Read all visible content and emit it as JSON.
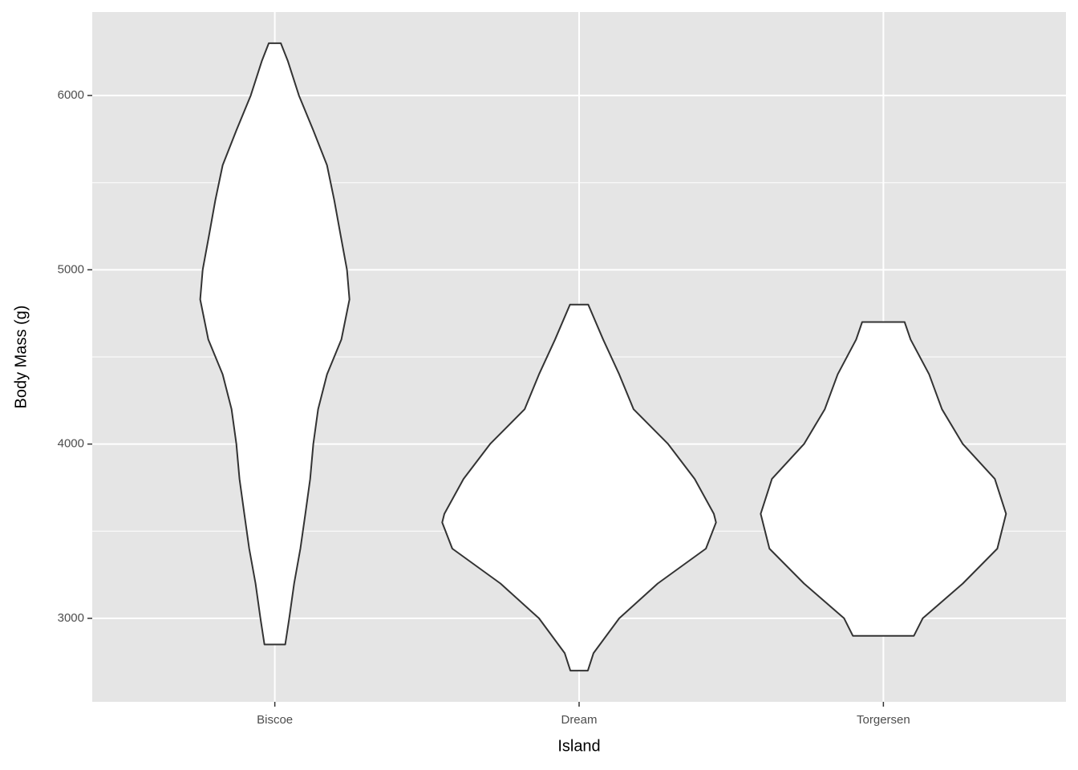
{
  "chart_data": {
    "type": "violin",
    "x_label": "Island",
    "y_label": "Body Mass (g)",
    "categories": [
      "Biscoe",
      "Dream",
      "Torgersen"
    ],
    "ylim": [
      2521,
      6479
    ],
    "yticks": [
      3000,
      4000,
      5000,
      6000
    ],
    "y_minor_ticks": [
      3500,
      4500,
      5500
    ],
    "grid": true,
    "fill": "#ffffff",
    "color": "#333333",
    "violins": [
      {
        "y": [
          6300,
          6200,
          6000,
          5800,
          5600,
          5400,
          5200,
          5000,
          4830,
          4600,
          4400,
          4200,
          4000,
          3800,
          3600,
          3400,
          3200,
          3000,
          2850
        ],
        "width": [
          0.044,
          0.094,
          0.176,
          0.281,
          0.381,
          0.434,
          0.48,
          0.527,
          0.545,
          0.486,
          0.381,
          0.316,
          0.281,
          0.258,
          0.223,
          0.187,
          0.141,
          0.105,
          0.076
        ]
      },
      {
        "y": [
          4800,
          4600,
          4400,
          4200,
          4000,
          3800,
          3600,
          3550,
          3400,
          3200,
          3000,
          2800,
          2700
        ],
        "width": [
          0.067,
          0.176,
          0.293,
          0.398,
          0.65,
          0.844,
          0.984,
          1.0,
          0.926,
          0.574,
          0.293,
          0.105,
          0.064
        ]
      },
      {
        "y": [
          4700,
          4600,
          4400,
          4200,
          4000,
          3800,
          3600,
          3400,
          3200,
          3000,
          2900
        ],
        "width": [
          0.155,
          0.199,
          0.334,
          0.428,
          0.58,
          0.814,
          0.896,
          0.832,
          0.58,
          0.287,
          0.223
        ]
      }
    ]
  }
}
